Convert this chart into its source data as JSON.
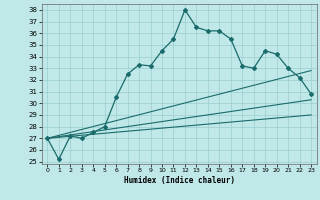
{
  "xlabel": "Humidex (Indice chaleur)",
  "ylabel": "",
  "xlim": [
    -0.5,
    23.5
  ],
  "ylim": [
    24.8,
    38.5
  ],
  "yticks": [
    25,
    26,
    27,
    28,
    29,
    30,
    31,
    32,
    33,
    34,
    35,
    36,
    37,
    38
  ],
  "xticks": [
    0,
    1,
    2,
    3,
    4,
    5,
    6,
    7,
    8,
    9,
    10,
    11,
    12,
    13,
    14,
    15,
    16,
    17,
    18,
    19,
    20,
    21,
    22,
    23
  ],
  "bg_color": "#c0e8e8",
  "grid_color": "#9acece",
  "line_color": "#1a6b6b",
  "line1_x": [
    0,
    1,
    2,
    3,
    4,
    5,
    6,
    7,
    8,
    9,
    10,
    11,
    12,
    13,
    14,
    15,
    16,
    17,
    18,
    19,
    20,
    21,
    22,
    23
  ],
  "line1_y": [
    27.0,
    25.2,
    27.2,
    27.0,
    27.5,
    28.0,
    30.5,
    32.5,
    33.3,
    33.2,
    34.5,
    35.5,
    38.0,
    36.5,
    36.2,
    36.2,
    35.5,
    33.2,
    33.0,
    34.5,
    34.2,
    33.0,
    32.2,
    30.8
  ],
  "line2_x": [
    0,
    23
  ],
  "line2_y": [
    27.0,
    30.3
  ],
  "line3_x": [
    0,
    23
  ],
  "line3_y": [
    27.0,
    32.8
  ],
  "line4_x": [
    0,
    23
  ],
  "line4_y": [
    27.0,
    29.0
  ]
}
